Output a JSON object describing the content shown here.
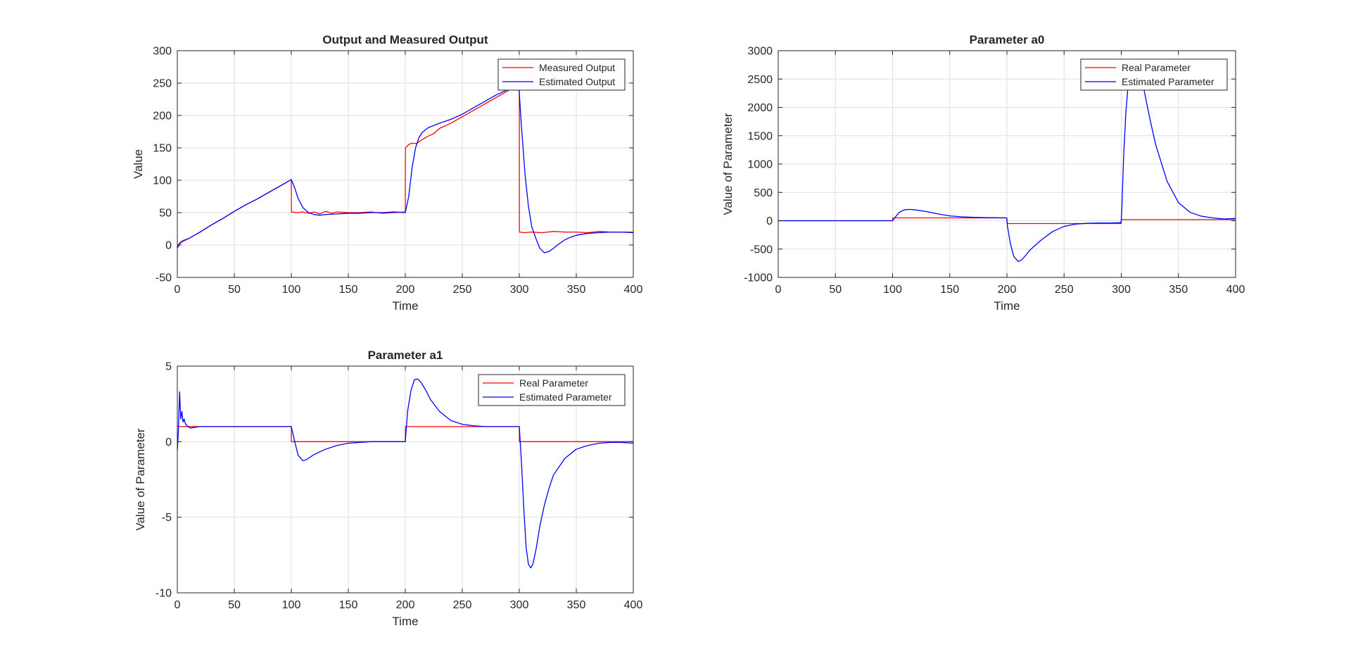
{
  "chart_data": [
    {
      "type": "line",
      "title": "Output and Measured Output",
      "xlabel": "Time",
      "ylabel": "Value",
      "xlim": [
        0,
        400
      ],
      "ylim": [
        -50,
        300
      ],
      "xticks": [
        0,
        50,
        100,
        150,
        200,
        250,
        300,
        350,
        400
      ],
      "yticks": [
        -50,
        0,
        50,
        100,
        150,
        200,
        250,
        300
      ],
      "grid": true,
      "legend_position": "top-right",
      "series": [
        {
          "name": "Measured Output",
          "color": "#ff0000",
          "x": [
            0,
            2,
            5,
            10,
            20,
            30,
            40,
            50,
            60,
            70,
            80,
            90,
            100,
            100.1,
            105,
            110,
            115,
            120,
            125,
            130,
            135,
            140,
            150,
            160,
            170,
            180,
            190,
            200,
            200.1,
            203,
            205,
            210,
            215,
            220,
            225,
            230,
            240,
            250,
            260,
            270,
            280,
            290,
            300,
            300.1,
            305,
            310,
            320,
            330,
            340,
            350,
            360,
            370,
            380,
            390,
            400
          ],
          "y": [
            -2,
            3,
            7,
            10,
            20,
            31,
            41,
            52,
            62,
            71,
            81,
            91,
            101,
            51,
            50,
            51,
            49,
            51,
            48,
            52,
            49,
            51,
            50,
            50,
            51,
            49,
            50,
            51,
            150,
            155,
            157,
            157,
            163,
            168,
            172,
            180,
            188,
            198,
            208,
            218,
            228,
            238,
            248,
            20,
            19,
            20,
            19,
            21,
            20,
            20,
            19,
            21,
            20,
            20,
            20
          ]
        },
        {
          "name": "Estimated Output",
          "color": "#0000ff",
          "x": [
            0,
            2,
            5,
            10,
            20,
            30,
            40,
            50,
            60,
            70,
            80,
            90,
            100,
            103,
            106,
            110,
            115,
            120,
            125,
            130,
            140,
            150,
            160,
            170,
            180,
            190,
            200,
            203,
            206,
            209,
            212,
            215,
            220,
            230,
            240,
            250,
            260,
            270,
            280,
            290,
            297,
            299.5,
            302,
            305,
            308,
            311,
            315,
            318,
            322,
            326,
            330,
            335,
            340,
            345,
            350,
            360,
            370,
            380,
            390,
            400
          ],
          "y": [
            -5,
            2,
            6,
            10,
            20,
            31,
            41,
            52,
            62,
            71,
            81,
            91,
            101,
            88,
            72,
            58,
            50,
            47,
            46,
            47,
            48,
            49,
            49,
            50,
            50,
            51,
            50,
            75,
            120,
            150,
            166,
            174,
            181,
            188,
            194,
            202,
            212,
            222,
            232,
            240,
            245,
            248,
            180,
            110,
            60,
            28,
            8,
            -5,
            -12,
            -10,
            -5,
            2,
            8,
            12,
            15,
            18,
            19,
            20,
            20,
            19
          ]
        }
      ]
    },
    {
      "type": "line",
      "title": "Parameter a0",
      "xlabel": "Time",
      "ylabel": "Value of Parameter",
      "xlim": [
        0,
        400
      ],
      "ylim": [
        -1000,
        3000
      ],
      "xticks": [
        0,
        50,
        100,
        150,
        200,
        250,
        300,
        350,
        400
      ],
      "yticks": [
        -1000,
        -500,
        0,
        500,
        1000,
        1500,
        2000,
        2500,
        3000
      ],
      "grid": true,
      "legend_position": "top-right",
      "series": [
        {
          "name": "Real Parameter",
          "color": "#ff0000",
          "x": [
            0,
            100,
            100.1,
            200,
            200.1,
            300,
            300.1,
            400
          ],
          "y": [
            0,
            0,
            50,
            50,
            -50,
            -50,
            20,
            20
          ]
        },
        {
          "name": "Estimated Parameter",
          "color": "#0000ff",
          "x": [
            0,
            50,
            100,
            103,
            106,
            110,
            115,
            120,
            130,
            140,
            150,
            160,
            170,
            180,
            190,
            199.8,
            200.5,
            203,
            206,
            210,
            213,
            216,
            220,
            230,
            240,
            250,
            260,
            270,
            280,
            290,
            299.8,
            300.5,
            302,
            304,
            306,
            308,
            310,
            312,
            315,
            318,
            320,
            325,
            330,
            340,
            350,
            360,
            370,
            380,
            390,
            400
          ],
          "y": [
            0,
            0,
            0,
            80,
            150,
            190,
            200,
            190,
            160,
            120,
            85,
            70,
            60,
            55,
            52,
            50,
            -100,
            -400,
            -630,
            -720,
            -690,
            -620,
            -520,
            -340,
            -190,
            -100,
            -60,
            -45,
            -40,
            -40,
            -35,
            200,
            1100,
            1900,
            2400,
            2650,
            2700,
            2680,
            2600,
            2450,
            2300,
            1800,
            1350,
            700,
            320,
            150,
            80,
            50,
            30,
            40
          ]
        }
      ]
    },
    {
      "type": "line",
      "title": "Parameter a1",
      "xlabel": "Time",
      "ylabel": "Value of Parameter",
      "xlim": [
        0,
        400
      ],
      "ylim": [
        -10,
        5
      ],
      "xticks": [
        0,
        50,
        100,
        150,
        200,
        250,
        300,
        350,
        400
      ],
      "yticks": [
        -10,
        -5,
        0,
        5
      ],
      "grid": true,
      "legend_position": "top-right",
      "series": [
        {
          "name": "Real Parameter",
          "color": "#ff0000",
          "x": [
            0,
            100,
            100.1,
            200,
            200.1,
            300,
            300.1,
            400
          ],
          "y": [
            1,
            1,
            0,
            0,
            1,
            1,
            0,
            0
          ]
        },
        {
          "name": "Estimated Parameter",
          "color": "#0000ff",
          "x": [
            0,
            0.8,
            2,
            3,
            4,
            5,
            6,
            7,
            9,
            12,
            15,
            20,
            30,
            50,
            70,
            90,
            100,
            103,
            106,
            110,
            113,
            116,
            120,
            130,
            140,
            150,
            160,
            170,
            180,
            190,
            200,
            202,
            205,
            208,
            211,
            214,
            218,
            222,
            230,
            240,
            250,
            260,
            270,
            280,
            290,
            300,
            302,
            304,
            306,
            308,
            310,
            312,
            315,
            318,
            322,
            326,
            330,
            340,
            350,
            360,
            370,
            380,
            390,
            400
          ],
          "y": [
            -0.6,
            0.5,
            3.3,
            1.5,
            2.0,
            1.3,
            1.5,
            1.2,
            1.0,
            0.9,
            0.95,
            1.0,
            1.0,
            1.0,
            1.0,
            1.0,
            1.0,
            0.0,
            -0.9,
            -1.25,
            -1.2,
            -1.05,
            -0.85,
            -0.5,
            -0.25,
            -0.1,
            -0.05,
            0,
            0,
            0,
            0,
            2.0,
            3.4,
            4.1,
            4.15,
            3.9,
            3.4,
            2.8,
            2.0,
            1.4,
            1.15,
            1.05,
            1.0,
            1.0,
            1.0,
            1.0,
            -1.5,
            -4.5,
            -7.0,
            -8.1,
            -8.35,
            -8.1,
            -7.0,
            -5.6,
            -4.2,
            -3.1,
            -2.2,
            -1.1,
            -0.5,
            -0.25,
            -0.1,
            -0.05,
            -0.05,
            -0.1
          ]
        }
      ]
    }
  ]
}
